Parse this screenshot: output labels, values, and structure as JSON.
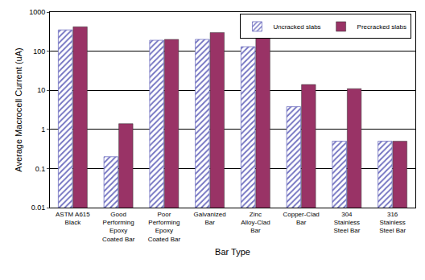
{
  "chart_data": {
    "type": "bar",
    "x_label": "Bar Type",
    "y_label": "Average Macrocell Current (uA)",
    "categories": [
      "ASTM A615 Black",
      "Good Performing Epoxy Coated Bar",
      "Poor Performing Epoxy Coated Bar",
      "Galvanized Bar",
      "Zinc Alloy-Clad Bar",
      "Copper-Clad Bar",
      "304 Stainless Steel Bar",
      "316 Stainless Steel Bar"
    ],
    "series": [
      {
        "name": "Uncracked slabs",
        "color": "#7070c0",
        "marker": "hatched",
        "values": [
          350,
          0.2,
          190,
          200,
          130,
          3.8,
          0.5,
          0.5
        ]
      },
      {
        "name": "Precracked slabs",
        "color": "#993366",
        "values": [
          420,
          1.4,
          200,
          300,
          270,
          14,
          11,
          0.5
        ]
      }
    ],
    "log": "y",
    "ylim": [
      0.01,
      1000
    ],
    "yticks": [
      0.01,
      0.1,
      1,
      10,
      100,
      1000
    ],
    "grid": true,
    "legend": "upper right"
  }
}
